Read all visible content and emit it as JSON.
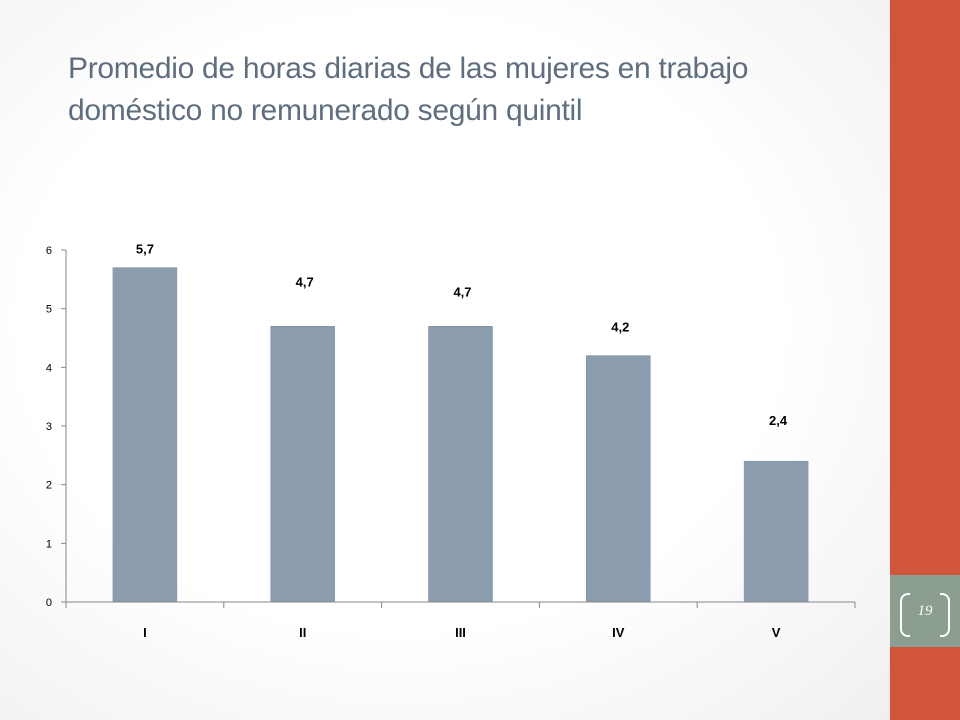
{
  "slide": {
    "title": "Promedio de horas diarias de las mujeres en trabajo doméstico no remunerado según quintil",
    "page_number": "19"
  },
  "colors": {
    "accent": "#d1553b",
    "badge": "#8c9e8f",
    "title": "#5e6e7f",
    "bar": "#8b9caf"
  },
  "chart_data": {
    "type": "bar",
    "title": "",
    "xlabel": "",
    "ylabel": "",
    "categories": [
      "I",
      "II",
      "III",
      "IV",
      "V"
    ],
    "values": [
      5.7,
      4.7,
      4.7,
      4.2,
      2.4
    ],
    "data_labels": [
      "5,7",
      "4,7",
      "4,7",
      "4,2",
      "2,4"
    ],
    "yticks": [
      "0",
      "1",
      "2",
      "3",
      "4",
      "5",
      "6"
    ],
    "ylim": [
      0,
      6
    ],
    "grid": false,
    "legend": "none"
  }
}
